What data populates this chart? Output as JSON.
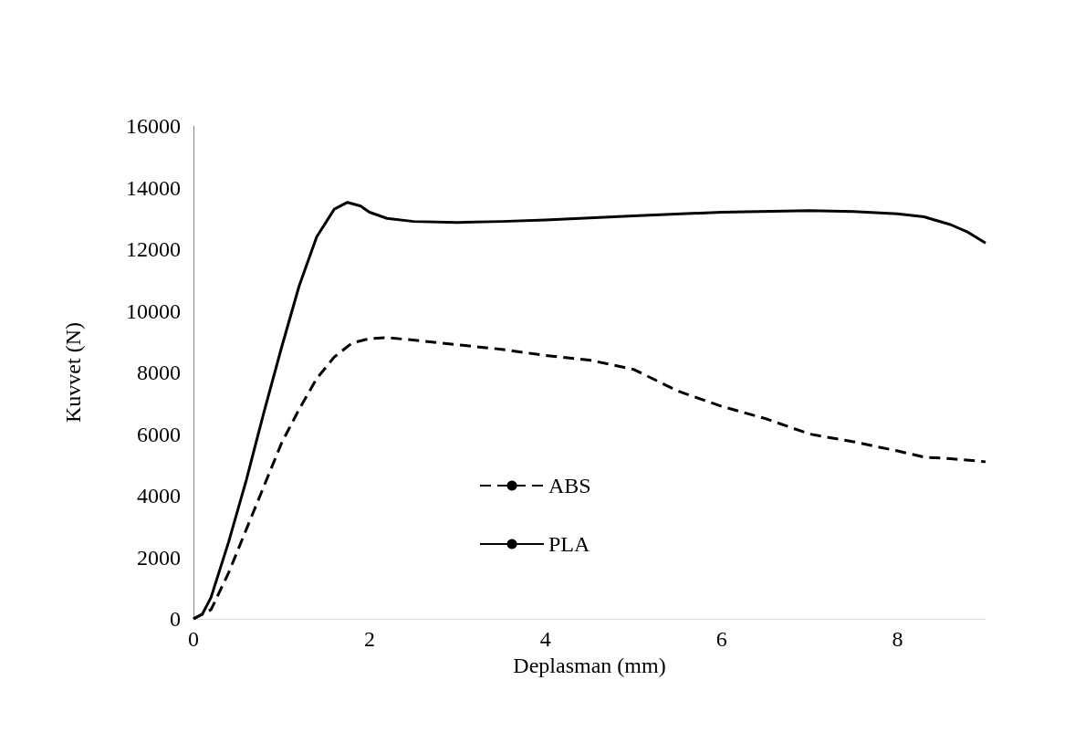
{
  "chart_data": {
    "type": "line",
    "xlabel": "Deplasman (mm)",
    "ylabel": "Kuvvet (N)",
    "xlim": [
      0,
      9
    ],
    "xticks": [
      0,
      2,
      4,
      6,
      8
    ],
    "ylim": [
      0,
      16000
    ],
    "yticks": [
      0,
      2000,
      4000,
      6000,
      8000,
      10000,
      12000,
      14000,
      16000
    ],
    "grid": false,
    "legend": "bottom left",
    "marker": "none",
    "series": [
      {
        "name": "ABS",
        "color": "#000000",
        "line_style": "dashed",
        "x": [
          0,
          0.2,
          0.4,
          0.6,
          0.8,
          1.0,
          1.2,
          1.4,
          1.6,
          1.8,
          2.0,
          2.2,
          2.5,
          3,
          3.5,
          4,
          4.5,
          5,
          5.5,
          6,
          6.5,
          7,
          7.5,
          8,
          8.3,
          8.6,
          9
        ],
        "values": [
          0,
          300,
          1500,
          2900,
          4300,
          5700,
          6800,
          7800,
          8500,
          8950,
          9100,
          9130,
          9050,
          8900,
          8750,
          8550,
          8400,
          8100,
          7400,
          6900,
          6500,
          6000,
          5750,
          5450,
          5250,
          5200,
          5100
        ]
      },
      {
        "name": "PLA",
        "color": "#000000",
        "line_style": "solid",
        "x": [
          0,
          0.1,
          0.2,
          0.4,
          0.6,
          0.8,
          1.0,
          1.2,
          1.4,
          1.6,
          1.75,
          1.9,
          2.0,
          2.2,
          2.5,
          3,
          3.5,
          4,
          5,
          6,
          7,
          7.5,
          8,
          8.3,
          8.6,
          8.8,
          9
        ],
        "values": [
          0,
          150,
          700,
          2500,
          4500,
          6700,
          8800,
          10800,
          12400,
          13300,
          13520,
          13400,
          13200,
          13000,
          12900,
          12870,
          12900,
          12950,
          13080,
          13200,
          13250,
          13220,
          13150,
          13050,
          12800,
          12550,
          12200
        ]
      }
    ]
  }
}
